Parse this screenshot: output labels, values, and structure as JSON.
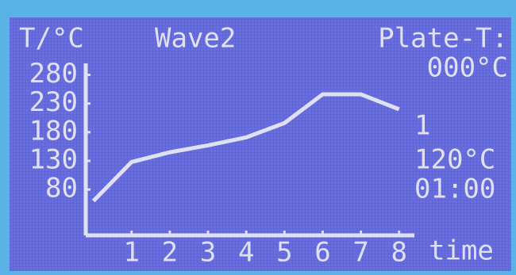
{
  "chart_data": {
    "type": "line",
    "title": "Wave2",
    "y_label": "T/°C",
    "x_label": "time",
    "annotations": [
      "Plate-T:",
      "000°C",
      "1",
      "120°C",
      "01:00"
    ],
    "x": [
      0,
      1,
      2,
      3,
      4,
      5,
      6,
      7,
      8
    ],
    "series": [
      {
        "color": "#dfe0f2",
        "values": [
          60,
          128,
          145,
          157,
          171,
          196,
          246,
          246,
          220
        ]
      }
    ],
    "xlim": [
      -0.2,
      8.4
    ],
    "ylim": [
      0,
      300
    ],
    "xticks": [
      1,
      2,
      3,
      4,
      5,
      6,
      7,
      8
    ],
    "yticks": [
      80,
      130,
      180,
      230,
      280
    ]
  }
}
